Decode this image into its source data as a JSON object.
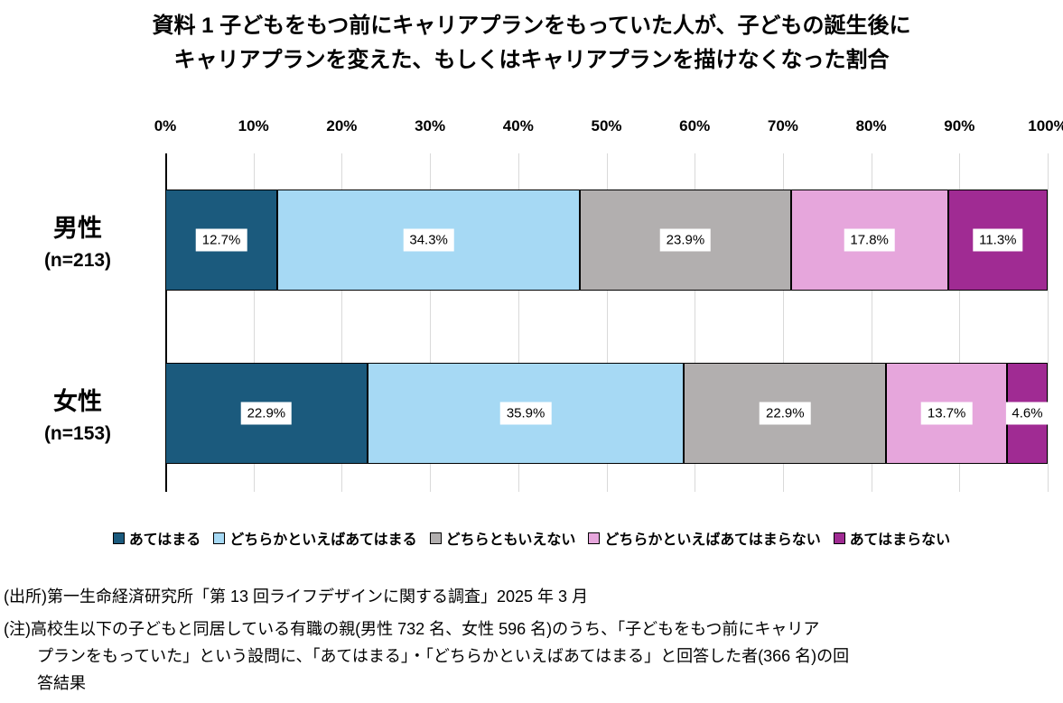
{
  "title": {
    "line1": "資料 1 子どもをもつ前にキャリアプランをもっていた人が、子どもの誕生後に",
    "line2": "キャリアプランを変えた、もしくはキャリアプランを描けなくなった割合"
  },
  "chart_data": {
    "type": "bar",
    "stacked": true,
    "orientation": "horizontal",
    "title": "資料 1 子どもをもつ前にキャリアプランをもっていた人が、子どもの誕生後にキャリアプランを変えた、もしくはキャリアプランを描けなくなった割合",
    "xlabel": "",
    "ylabel": "",
    "xlim": [
      0,
      100
    ],
    "grid": true,
    "legend_position": "bottom",
    "x_ticks": [
      "0%",
      "10%",
      "20%",
      "30%",
      "40%",
      "50%",
      "60%",
      "70%",
      "80%",
      "90%",
      "100%"
    ],
    "categories": [
      {
        "label": "男性",
        "sub": "(n=213)"
      },
      {
        "label": "女性",
        "sub": "(n=153)"
      }
    ],
    "series": [
      {
        "name": "あてはまる",
        "color": "#1b5a7d",
        "values": [
          12.7,
          22.9
        ]
      },
      {
        "name": "どちらかといえばあてはまる",
        "color": "#a6d9f4",
        "values": [
          34.3,
          35.9
        ]
      },
      {
        "name": "どちらともいえない",
        "color": "#b2afaf",
        "values": [
          23.9,
          22.9
        ]
      },
      {
        "name": "どちらかといえばあてはまらない",
        "color": "#e6a6dc",
        "values": [
          17.8,
          13.7
        ]
      },
      {
        "name": "あてはまらない",
        "color": "#a02b93",
        "values": [
          11.3,
          4.6
        ]
      }
    ],
    "value_label_suffix": "%",
    "colors": {
      "gridline": "#d9d9d9",
      "axis": "#000000",
      "segment_border": "#000000",
      "value_label_bg": "#ffffff"
    }
  },
  "footnotes": {
    "source": "(出所)第一生命経済研究所「第 13 回ライフデザインに関する調査」2025 年 3 月",
    "note_lines": [
      "(注)高校生以下の子どもと同居している有職の親(男性 732 名、女性 596 名)のうち、「子どもをもつ前にキャリア",
      "プランをもっていた」という設問に、「あてはまる」・「どちらかといえばあてはまる」と回答した者(366 名)の回",
      "答結果"
    ]
  }
}
